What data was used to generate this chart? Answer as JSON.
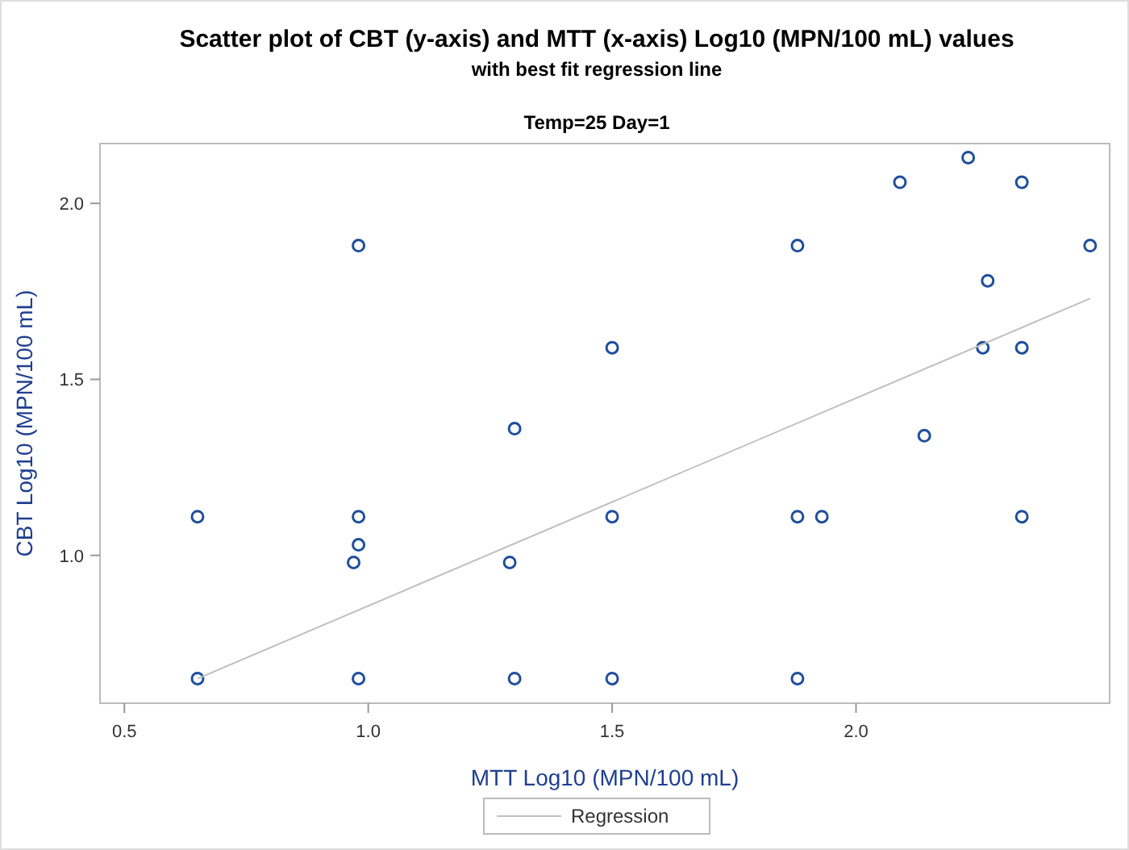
{
  "chart_data": {
    "type": "scatter",
    "title": "Scatter plot of CBT (y-axis) and MTT (x-axis) Log10 (MPN/100 mL) values",
    "subtitle": "with best fit regression line",
    "annotations": [
      "Temp=25 Day=1"
    ],
    "xlabel": "MTT Log10 (MPN/100 mL)",
    "ylabel": "CBT Log10 (MPN/100 mL)",
    "xlim": [
      0.45,
      2.52
    ],
    "ylim": [
      0.58,
      2.17
    ],
    "xticks": [
      0.5,
      {
        "value": 1,
        "label": "1.0"
      },
      1.5,
      {
        "value": 2,
        "label": "2.0"
      }
    ],
    "yticks": [
      {
        "value": 1,
        "label": "1.0"
      },
      1.5,
      {
        "value": 2,
        "label": "2.0"
      }
    ],
    "grid": false,
    "legend": "bottom",
    "series": [
      {
        "marker": "circle",
        "color": "#1f4e9c",
        "x": [
          0.65,
          0.65,
          0.98,
          0.98,
          0.98,
          0.97,
          0.98,
          1.3,
          1.29,
          1.3,
          1.5,
          1.5,
          1.5,
          1.88,
          1.88,
          1.88,
          1.93,
          2.09,
          2.14,
          2.23,
          2.34,
          2.27,
          2.26,
          2.34,
          2.34,
          2.48
        ],
        "values": [
          1.11,
          0.65,
          1.88,
          1.11,
          1.03,
          0.98,
          0.65,
          1.36,
          0.98,
          0.65,
          1.59,
          1.11,
          0.65,
          1.88,
          1.11,
          0.65,
          1.11,
          2.06,
          1.34,
          2.13,
          1.11,
          1.78,
          1.59,
          2.06,
          1.59,
          1.88
        ]
      },
      {
        "type": "line",
        "name": "Regression",
        "color": "#c0c0c0",
        "line_style": "solid",
        "x": [
          0.65,
          2.48
        ],
        "values": [
          0.65,
          1.73
        ]
      }
    ]
  }
}
